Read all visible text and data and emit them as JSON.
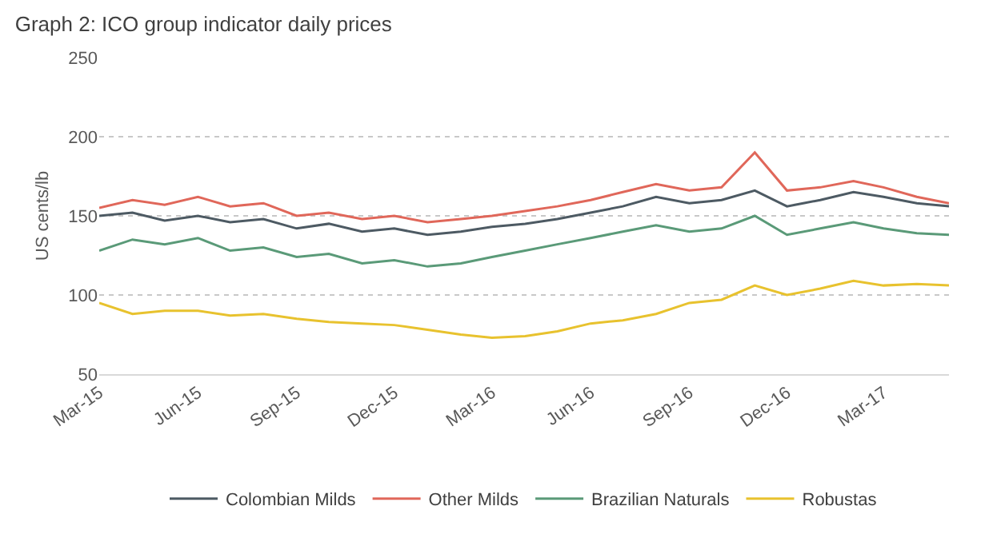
{
  "chart_data": {
    "type": "line",
    "title": "Graph 2: ICO group indicator daily prices",
    "ylabel": "US cents/lb",
    "x": [
      "2015-03",
      "2015-04",
      "2015-05",
      "2015-06",
      "2015-07",
      "2015-08",
      "2015-09",
      "2015-10",
      "2015-11",
      "2015-12",
      "2016-01",
      "2016-02",
      "2016-03",
      "2016-04",
      "2016-05",
      "2016-06",
      "2016-07",
      "2016-08",
      "2016-09",
      "2016-10",
      "2016-11",
      "2016-12",
      "2017-01",
      "2017-02",
      "2017-03",
      "2017-04",
      "2017-05"
    ],
    "series": [
      {
        "name": "Colombian Milds",
        "color": "#4d5a63",
        "values": [
          150,
          152,
          147,
          150,
          146,
          148,
          142,
          145,
          140,
          142,
          138,
          140,
          143,
          145,
          148,
          152,
          156,
          162,
          158,
          160,
          166,
          156,
          160,
          165,
          162,
          158,
          156
        ]
      },
      {
        "name": "Other Milds",
        "color": "#e0675a",
        "values": [
          155,
          160,
          157,
          162,
          156,
          158,
          150,
          152,
          148,
          150,
          146,
          148,
          150,
          153,
          156,
          160,
          165,
          170,
          166,
          168,
          190,
          166,
          168,
          172,
          168,
          162,
          158
        ]
      },
      {
        "name": "Brazilian Naturals",
        "color": "#5a9a78",
        "values": [
          128,
          135,
          132,
          136,
          128,
          130,
          124,
          126,
          120,
          122,
          118,
          120,
          124,
          128,
          132,
          136,
          140,
          144,
          140,
          142,
          150,
          138,
          142,
          146,
          142,
          139,
          138
        ]
      },
      {
        "name": "Robustas",
        "color": "#e8c22e",
        "values": [
          95,
          88,
          90,
          90,
          87,
          88,
          85,
          83,
          82,
          81,
          78,
          75,
          73,
          74,
          77,
          82,
          84,
          88,
          95,
          97,
          106,
          100,
          104,
          109,
          106,
          107,
          106
        ]
      }
    ],
    "ylim": [
      50,
      250
    ],
    "xlim": [
      "2015-03",
      "2017-05"
    ],
    "yticks": [
      50,
      100,
      150,
      200,
      250
    ],
    "xticks": [
      {
        "value": "2015-03",
        "label": "Mar-15"
      },
      {
        "value": "2015-06",
        "label": "Jun-15"
      },
      {
        "value": "2015-09",
        "label": "Sep-15"
      },
      {
        "value": "2015-12",
        "label": "Dec-15"
      },
      {
        "value": "2016-03",
        "label": "Mar-16"
      },
      {
        "value": "2016-06",
        "label": "Jun-16"
      },
      {
        "value": "2016-09",
        "label": "Sep-16"
      },
      {
        "value": "2016-12",
        "label": "Dec-16"
      },
      {
        "value": "2017-03",
        "label": "Mar-17"
      }
    ],
    "grid": "y",
    "legend": "bottom",
    "marker": "none",
    "line_style": "solid"
  }
}
